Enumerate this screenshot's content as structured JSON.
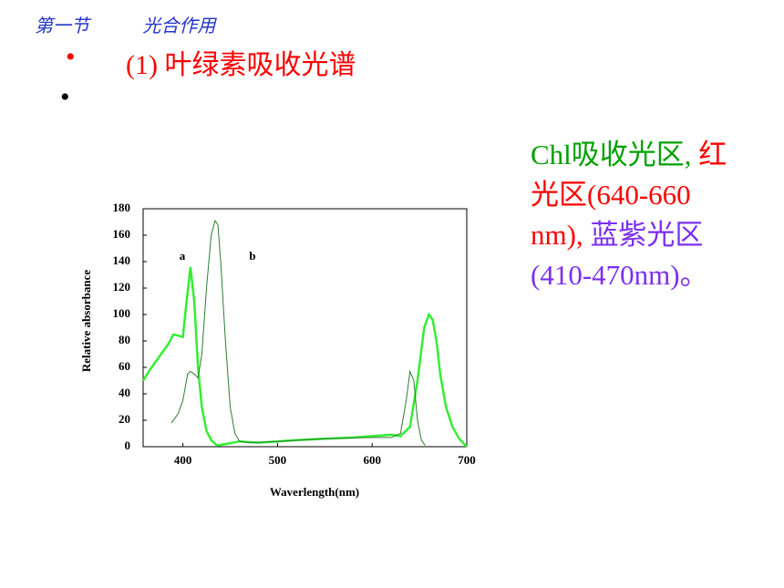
{
  "header": {
    "section": "第一节",
    "title": "光合作用"
  },
  "bullets": [
    "(1) 叶绿素吸收光谱"
  ],
  "note": [
    {
      "text": "Chl吸收光区,",
      "color": "#00a000"
    },
    {
      "text": "红光区(640-660 nm),",
      "color": "#ff0000"
    },
    {
      "text": "蓝紫光区 (410-470nm)。",
      "color": "#7b2ff0"
    }
  ],
  "chart_data": {
    "type": "line",
    "x_label": "Waverlength(nm)",
    "y_label": "Relative absorbance",
    "xlim": [
      358,
      700
    ],
    "ylim": [
      0,
      180
    ],
    "xticks": [
      400,
      500,
      600,
      700
    ],
    "yticks": [
      0,
      20,
      40,
      60,
      80,
      100,
      120,
      140,
      160,
      180
    ],
    "series": [
      {
        "name": "a",
        "color": "#33ee33",
        "width": 2.5,
        "x": [
          358,
          365,
          375,
          385,
          390,
          395,
          400,
          404,
          408,
          412,
          416,
          420,
          425,
          430,
          436,
          445,
          460,
          480,
          500,
          520,
          550,
          580,
          600,
          620,
          630,
          640,
          648,
          655,
          660,
          664,
          668,
          672,
          678,
          685,
          692,
          700
        ],
        "values": [
          50,
          58,
          68,
          78,
          85,
          84,
          83,
          110,
          136,
          110,
          60,
          30,
          12,
          5,
          1,
          2,
          4,
          3,
          4,
          5,
          6,
          7,
          8,
          9,
          8,
          15,
          50,
          90,
          100,
          96,
          80,
          55,
          30,
          15,
          6,
          0
        ]
      },
      {
        "name": "b",
        "color": "#2e7d32",
        "width": 1,
        "x": [
          388,
          395,
          400,
          405,
          408,
          412,
          416,
          420,
          425,
          430,
          434,
          437,
          440,
          445,
          450,
          455,
          460,
          470,
          500,
          550,
          600,
          620,
          630,
          636,
          640,
          644,
          648,
          652,
          656
        ],
        "values": [
          18,
          25,
          35,
          55,
          57,
          55,
          52,
          70,
          120,
          160,
          171,
          168,
          140,
          80,
          30,
          10,
          4,
          3,
          4,
          6,
          7,
          7,
          10,
          35,
          57,
          50,
          20,
          5,
          1
        ]
      }
    ]
  }
}
